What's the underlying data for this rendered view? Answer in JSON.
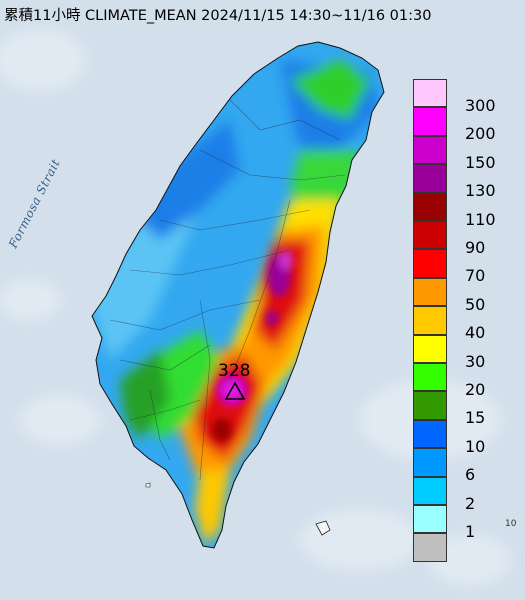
{
  "title": "累積11小時 CLIMATE_MEAN 2024/11/15 14:30~11/16 01:30",
  "strait_label": "Formosa Strait",
  "peak": {
    "value": "328",
    "marker": "triangle-icon"
  },
  "corner_text": "10",
  "legend": [
    {
      "label": "300",
      "color": "#ffc8ff"
    },
    {
      "label": "200",
      "color": "#ff00ff"
    },
    {
      "label": "150",
      "color": "#cc00cc"
    },
    {
      "label": "130",
      "color": "#990099"
    },
    {
      "label": "110",
      "color": "#990000"
    },
    {
      "label": "90",
      "color": "#cc0000"
    },
    {
      "label": "70",
      "color": "#ff0000"
    },
    {
      "label": "50",
      "color": "#ff9900"
    },
    {
      "label": "40",
      "color": "#ffc800"
    },
    {
      "label": "30",
      "color": "#ffff00"
    },
    {
      "label": "20",
      "color": "#33ff00"
    },
    {
      "label": "15",
      "color": "#339900"
    },
    {
      "label": "10",
      "color": "#0066ff"
    },
    {
      "label": "6",
      "color": "#0099ff"
    },
    {
      "label": "2",
      "color": "#00ccff"
    },
    {
      "label": "1",
      "color": "#99ffff"
    },
    {
      "label": "",
      "color": "#c0c0c0"
    }
  ]
}
